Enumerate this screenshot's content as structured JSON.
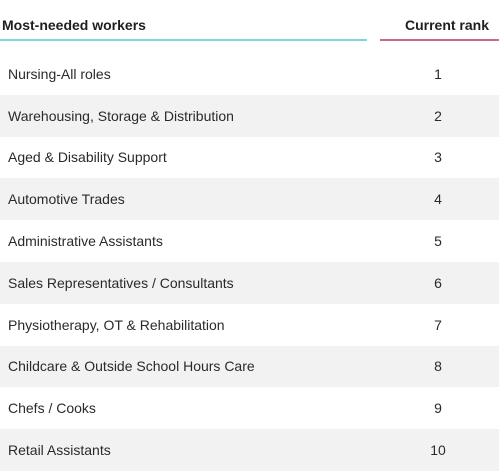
{
  "table": {
    "headers": {
      "worker": "Most-needed workers",
      "rank": "Current rank"
    },
    "rows": [
      {
        "worker": "Nursing-All roles",
        "rank": "1"
      },
      {
        "worker": "Warehousing, Storage & Distribution",
        "rank": "2"
      },
      {
        "worker": "Aged & Disability Support",
        "rank": "3"
      },
      {
        "worker": "Automotive Trades",
        "rank": "4"
      },
      {
        "worker": "Administrative Assistants",
        "rank": "5"
      },
      {
        "worker": "Sales Representatives / Consultants",
        "rank": "6"
      },
      {
        "worker": "Physiotherapy, OT & Rehabilitation",
        "rank": "7"
      },
      {
        "worker": "Childcare & Outside School Hours Care",
        "rank": "8"
      },
      {
        "worker": "Chefs / Cooks",
        "rank": "9"
      },
      {
        "worker": "Retail Assistants",
        "rank": "10"
      }
    ]
  },
  "colors": {
    "left_underline": "#7ed6d6",
    "right_underline": "#c86a8a",
    "stripe": "#f2f2f2"
  }
}
